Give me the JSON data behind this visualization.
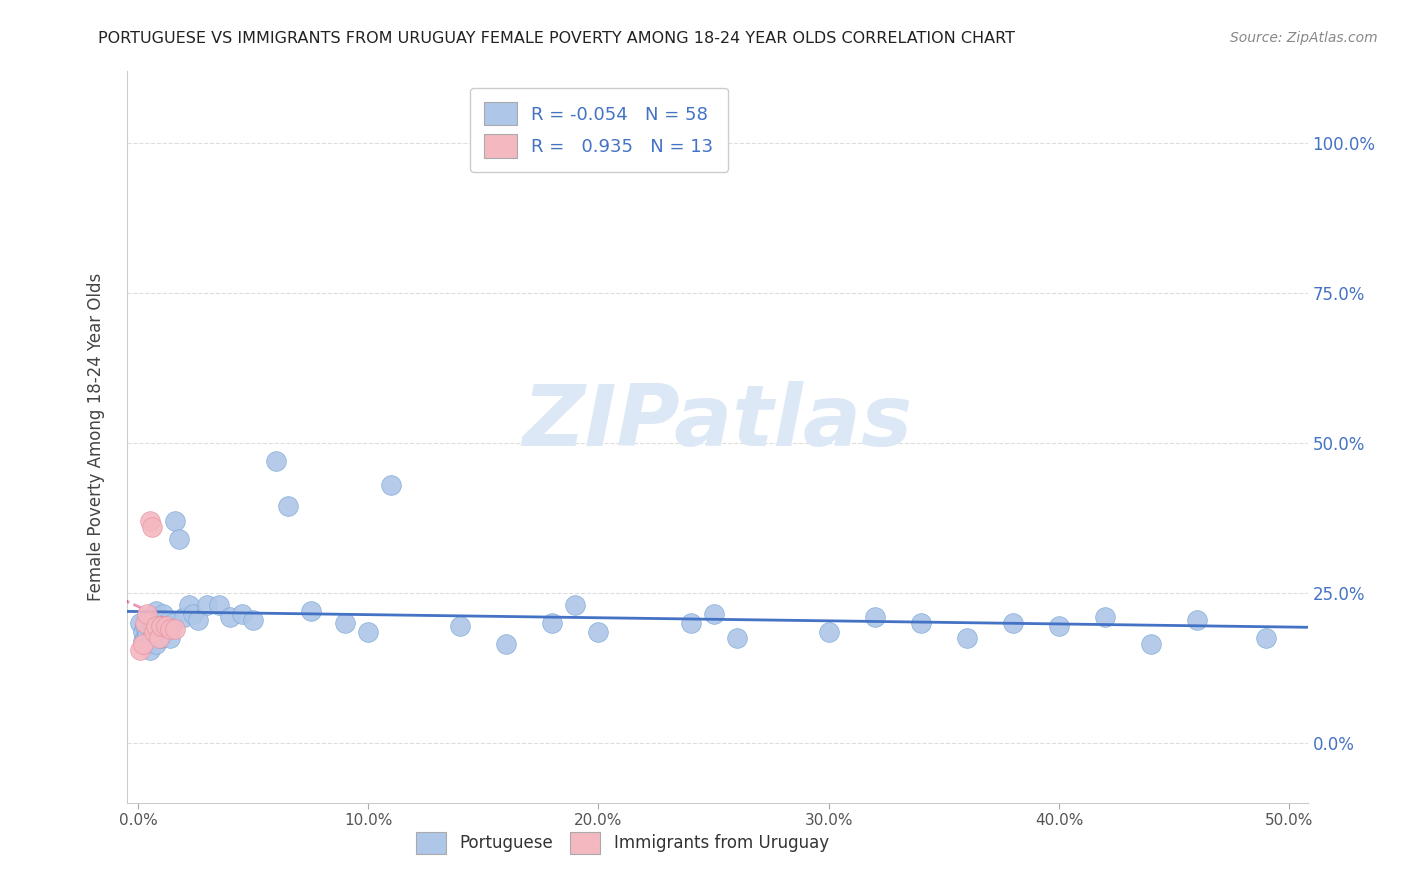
{
  "title": "PORTUGUESE VS IMMIGRANTS FROM URUGUAY FEMALE POVERTY AMONG 18-24 YEAR OLDS CORRELATION CHART",
  "source": "Source: ZipAtlas.com",
  "ylabel": "Female Poverty Among 18-24 Year Olds",
  "portuguese_color": "#aec6e8",
  "portuguese_edge": "#7ba7d4",
  "uruguay_color": "#f4b8c1",
  "uruguay_edge": "#e890a0",
  "trendline_blue_color": "#4472c4",
  "trendline_pink_color": "#e05080",
  "trendline_pink_dash_color": "#e8a0b0",
  "watermark_color": "#dce8f5",
  "right_axis_color": "#4472c4",
  "grid_color": "#dddddd",
  "blue_x": [
    0.001,
    0.002,
    0.002,
    0.003,
    0.003,
    0.004,
    0.004,
    0.005,
    0.005,
    0.006,
    0.006,
    0.007,
    0.007,
    0.008,
    0.008,
    0.009,
    0.01,
    0.01,
    0.011,
    0.012,
    0.013,
    0.014,
    0.015,
    0.016,
    0.018,
    0.02,
    0.022,
    0.024,
    0.026,
    0.03,
    0.035,
    0.04,
    0.045,
    0.05,
    0.06,
    0.065,
    0.075,
    0.09,
    0.1,
    0.11,
    0.14,
    0.16,
    0.18,
    0.19,
    0.2,
    0.24,
    0.25,
    0.26,
    0.3,
    0.32,
    0.34,
    0.36,
    0.38,
    0.4,
    0.42,
    0.44,
    0.46,
    0.49
  ],
  "blue_y": [
    0.2,
    0.185,
    0.17,
    0.195,
    0.175,
    0.165,
    0.18,
    0.21,
    0.155,
    0.19,
    0.175,
    0.195,
    0.21,
    0.165,
    0.22,
    0.185,
    0.2,
    0.175,
    0.215,
    0.185,
    0.195,
    0.175,
    0.2,
    0.37,
    0.34,
    0.21,
    0.23,
    0.215,
    0.205,
    0.23,
    0.23,
    0.21,
    0.215,
    0.205,
    0.47,
    0.395,
    0.22,
    0.2,
    0.185,
    0.43,
    0.195,
    0.165,
    0.2,
    0.23,
    0.185,
    0.2,
    0.215,
    0.175,
    0.185,
    0.21,
    0.2,
    0.175,
    0.2,
    0.195,
    0.21,
    0.165,
    0.205,
    0.175
  ],
  "pink_x": [
    0.001,
    0.002,
    0.003,
    0.004,
    0.005,
    0.006,
    0.007,
    0.008,
    0.009,
    0.01,
    0.012,
    0.014,
    0.016
  ],
  "pink_y": [
    0.155,
    0.165,
    0.2,
    0.215,
    0.37,
    0.36,
    0.185,
    0.195,
    0.175,
    0.195,
    0.195,
    0.19,
    0.19
  ],
  "blue_trend_slope": -0.054,
  "blue_trend_intercept": 0.205,
  "pink_slope": 80.0,
  "pink_intercept": -0.4,
  "xlim_low": -0.005,
  "xlim_high": 0.508,
  "ylim_low": -0.1,
  "ylim_high": 1.12,
  "xtick_vals": [
    0.0,
    0.1,
    0.2,
    0.3,
    0.4,
    0.5
  ],
  "ytick_vals": [
    0.0,
    0.25,
    0.5,
    0.75,
    1.0
  ]
}
